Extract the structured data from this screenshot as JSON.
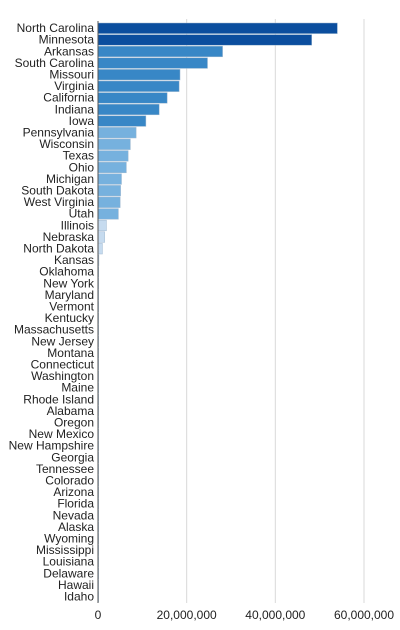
{
  "chart_data": {
    "type": "bar",
    "orientation": "horizontal",
    "grid": true,
    "xlim": [
      0,
      60000000
    ],
    "x_ticks": [
      {
        "value": 0,
        "label": "0"
      },
      {
        "value": 20000000,
        "label": "20,000,000"
      },
      {
        "value": 40000000,
        "label": "40,000,000"
      },
      {
        "value": 60000000,
        "label": "60,000,000"
      }
    ],
    "categories": [
      "North Carolina",
      "Minnesota",
      "Arkansas",
      "South Carolina",
      "Missouri",
      "Virginia",
      "California",
      "Indiana",
      "Iowa",
      "Pennsylvania",
      "Wisconsin",
      "Texas",
      "Ohio",
      "Michigan",
      "South Dakota",
      "West Virginia",
      "Utah",
      "Illinois",
      "Nebraska",
      "North Dakota",
      "Kansas",
      "Oklahoma",
      "New York",
      "Maryland",
      "Vermont",
      "Kentucky",
      "Massachusetts",
      "New Jersey",
      "Montana",
      "Connecticut",
      "Washington",
      "Maine",
      "Rhode Island",
      "Alabama",
      "Oregon",
      "New Mexico",
      "New Hampshire",
      "Georgia",
      "Tennessee",
      "Colorado",
      "Arizona",
      "Florida",
      "Nevada",
      "Alaska",
      "Wyoming",
      "Mississippi",
      "Louisiana",
      "Delaware",
      "Hawaii",
      "Idaho"
    ],
    "values": [
      54000000,
      48200000,
      28100000,
      24700000,
      18500000,
      18300000,
      15600000,
      13800000,
      10800000,
      8600000,
      7300000,
      6800000,
      6400000,
      5300000,
      5100000,
      5000000,
      4600000,
      1900000,
      1500000,
      1000000,
      200000,
      150000,
      120000,
      100000,
      90000,
      80000,
      70000,
      60000,
      50000,
      45000,
      40000,
      35000,
      30000,
      25000,
      20000,
      18000,
      15000,
      12000,
      10000,
      9000,
      8000,
      7000,
      6000,
      5000,
      4000,
      3000,
      2000,
      1500,
      1000,
      500
    ],
    "colors": {
      "dark": "#0b4e9e",
      "medium": "#3887c6",
      "light": "#76b1de",
      "pale": "#c6dbef",
      "grid": "#d9d9d9",
      "axis": "#555555"
    }
  }
}
